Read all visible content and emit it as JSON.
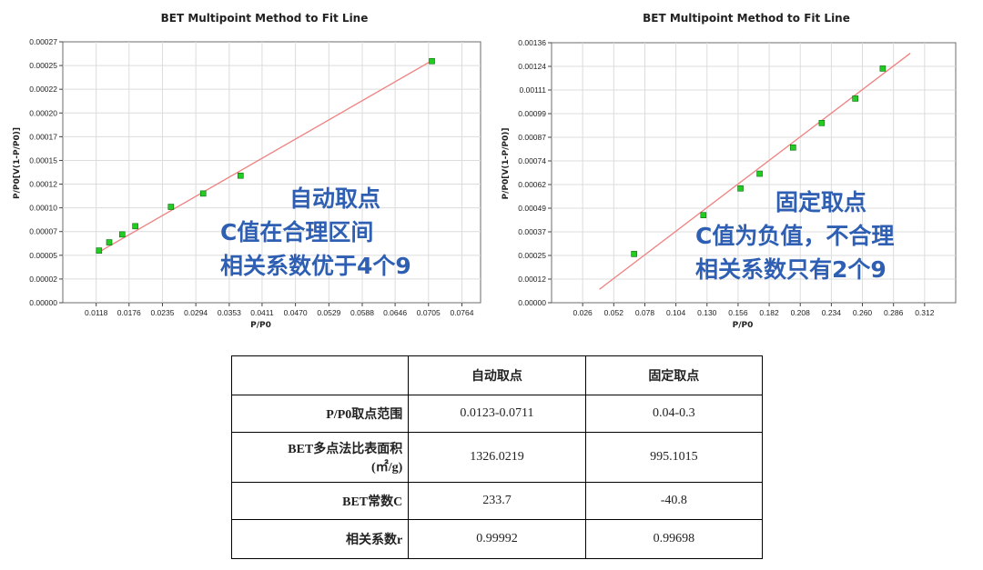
{
  "chart_data": [
    {
      "type": "scatter",
      "title": "BET Multipoint Method to Fit Line",
      "xlabel": "P/P0",
      "ylabel": "P/P0[V(1-P/P0)]",
      "xlim": [
        0.0059,
        0.0797
      ],
      "ylim": [
        0,
        0.00027
      ],
      "x_ticks": [
        "0.0118",
        "0.0176",
        "0.0235",
        "0.0294",
        "0.0353",
        "0.0411",
        "0.0470",
        "0.0529",
        "0.0588",
        "0.0646",
        "0.0705",
        "0.0764"
      ],
      "y_ticks": [
        "0.00000",
        "0.00002",
        "0.00005",
        "0.00007",
        "0.00010",
        "0.00012",
        "0.00015",
        "0.00017",
        "0.00020",
        "0.00022",
        "0.00025",
        "0.00027"
      ],
      "grid": true,
      "series": [
        {
          "points": [
            {
              "x": 0.0123,
              "y": 5.4e-05
            },
            {
              "x": 0.0141,
              "y": 6.25e-05
            },
            {
              "x": 0.0164,
              "y": 7.07e-05
            },
            {
              "x": 0.0187,
              "y": 7.92e-05
            },
            {
              "x": 0.025,
              "y": 9.92e-05
            },
            {
              "x": 0.0307,
              "y": 0.000113
            },
            {
              "x": 0.0373,
              "y": 0.0001315
            },
            {
              "x": 0.0711,
              "y": 0.00025
            }
          ],
          "color": "#22cc22"
        }
      ],
      "fit_line": {
        "x": [
          0.0123,
          0.0711
        ],
        "y": [
          5.25e-05,
          0.0002505
        ],
        "color": "#f08080"
      },
      "annotation": [
        "自动取点",
        "C值在合理区间",
        "相关系数优于4个9"
      ]
    },
    {
      "type": "scatter",
      "title": "BET Multipoint Method to Fit Line",
      "xlabel": "P/P0",
      "ylabel": "P/P0[V(1-P/P0)]",
      "xlim": [
        0.0,
        0.338
      ],
      "ylim": [
        0,
        0.00136
      ],
      "x_ticks": [
        "0.026",
        "0.052",
        "0.078",
        "0.104",
        "0.130",
        "0.156",
        "0.182",
        "0.208",
        "0.234",
        "0.260",
        "0.286",
        "0.312"
      ],
      "y_ticks": [
        "0.00000",
        "0.00012",
        "0.00025",
        "0.00037",
        "0.00049",
        "0.00062",
        "0.00074",
        "0.00087",
        "0.00099",
        "0.00111",
        "0.00124",
        "0.00136"
      ],
      "grid": true,
      "series": [
        {
          "points": [
            {
              "x": 0.069,
              "y": 0.000255
            },
            {
              "x": 0.127,
              "y": 0.000458
            },
            {
              "x": 0.158,
              "y": 0.000598
            },
            {
              "x": 0.174,
              "y": 0.000675
            },
            {
              "x": 0.202,
              "y": 0.000812
            },
            {
              "x": 0.226,
              "y": 0.00094
            },
            {
              "x": 0.254,
              "y": 0.001068
            },
            {
              "x": 0.277,
              "y": 0.001225
            }
          ],
          "color": "#22cc22"
        }
      ],
      "fit_line": {
        "x": [
          0.04,
          0.3
        ],
        "y": [
          7e-05,
          0.001305
        ],
        "color": "#f08080"
      },
      "annotation": [
        "固定取点",
        "C值为负值，不合理",
        "相关系数只有2个9"
      ]
    }
  ],
  "table": {
    "headers": [
      "",
      "自动取点",
      "固定取点"
    ],
    "rows": [
      {
        "label": "P/P0取点范围",
        "label2": "",
        "auto": "0.0123-0.0711",
        "fixed": "0.04-0.3"
      },
      {
        "label": "BET多点法比表面积",
        "label2": "(㎡/g)",
        "auto": "1326.0219",
        "fixed": "995.1015"
      },
      {
        "label": "BET常数C",
        "label2": "",
        "auto": "233.7",
        "fixed": "-40.8"
      },
      {
        "label": "相关系数r",
        "label2": "",
        "auto": "0.99992",
        "fixed": "0.99698"
      }
    ]
  }
}
